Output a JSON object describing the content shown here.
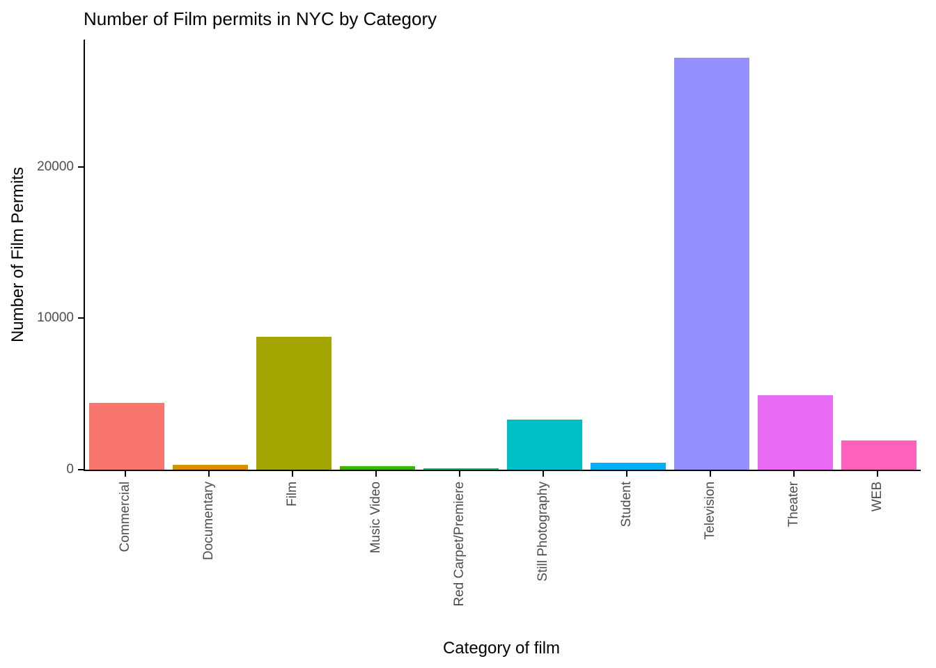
{
  "chart_data": {
    "type": "bar",
    "title": "Number of Film permits in NYC by Category",
    "xlabel": "Category of film",
    "ylabel": "Number of Film Permits",
    "categories": [
      "Commercial",
      "Documentary",
      "Film",
      "Music Video",
      "Red Carpet/Premiere",
      "Still Photography",
      "Student",
      "Television",
      "Theater",
      "WEB"
    ],
    "values": [
      4400,
      300,
      8800,
      250,
      100,
      3300,
      450,
      27200,
      4900,
      1950
    ],
    "colors": [
      "#F8766D",
      "#D89000",
      "#A3A500",
      "#39B600",
      "#00BF7D",
      "#00BFC4",
      "#00B0F6",
      "#9590FF",
      "#E76BF3",
      "#FF62BC"
    ],
    "ylim": [
      0,
      28400
    ],
    "yticks": [
      0,
      10000,
      20000
    ],
    "bar_width_fraction": 0.9,
    "grid": false,
    "legend": false
  }
}
